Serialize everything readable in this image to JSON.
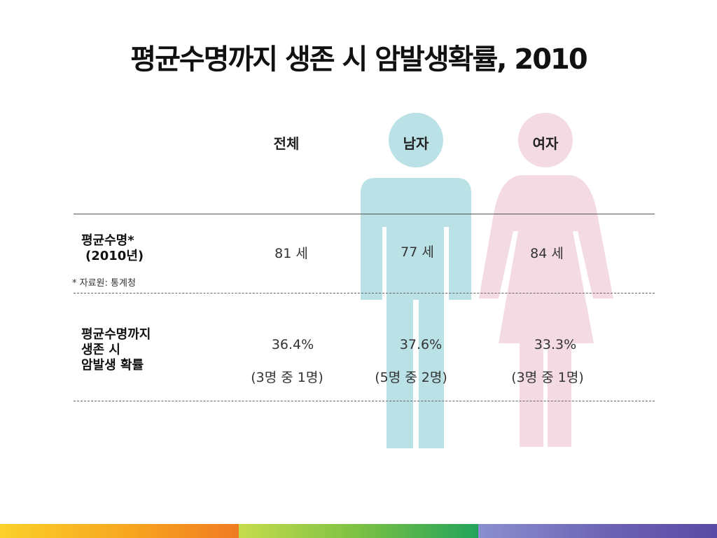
{
  "title": "평균수명까지 생존 시 암발생확률, 2010",
  "columns": {
    "total": "전체",
    "male": "남자",
    "female": "여자"
  },
  "rows": {
    "life_expectancy": {
      "label_line1": "평균수명*",
      "label_line2": "(2010년)",
      "source_note": "* 자료원: 통계청",
      "total": "81 세",
      "male": "77 세",
      "female": "84 세"
    },
    "cancer_probability": {
      "label_line1": "평균수명까지",
      "label_line2": "생존 시",
      "label_line3": "암발생 확률",
      "total": "36.4%",
      "male": "37.6%",
      "female": "33.3%",
      "total_ratio": "(3명 중 1명)",
      "male_ratio": "(5명 중 2명)",
      "female_ratio": "(3명 중 1명)"
    }
  },
  "colors": {
    "male_figure": "#b9e1e6",
    "female_figure": "#f4dbe3",
    "bar_orange": "#f29a1e",
    "bar_green": "#8cc63f",
    "bar_purple": "#6f5fae"
  },
  "icons": {
    "male": "man-figure-icon",
    "female": "woman-figure-icon"
  }
}
